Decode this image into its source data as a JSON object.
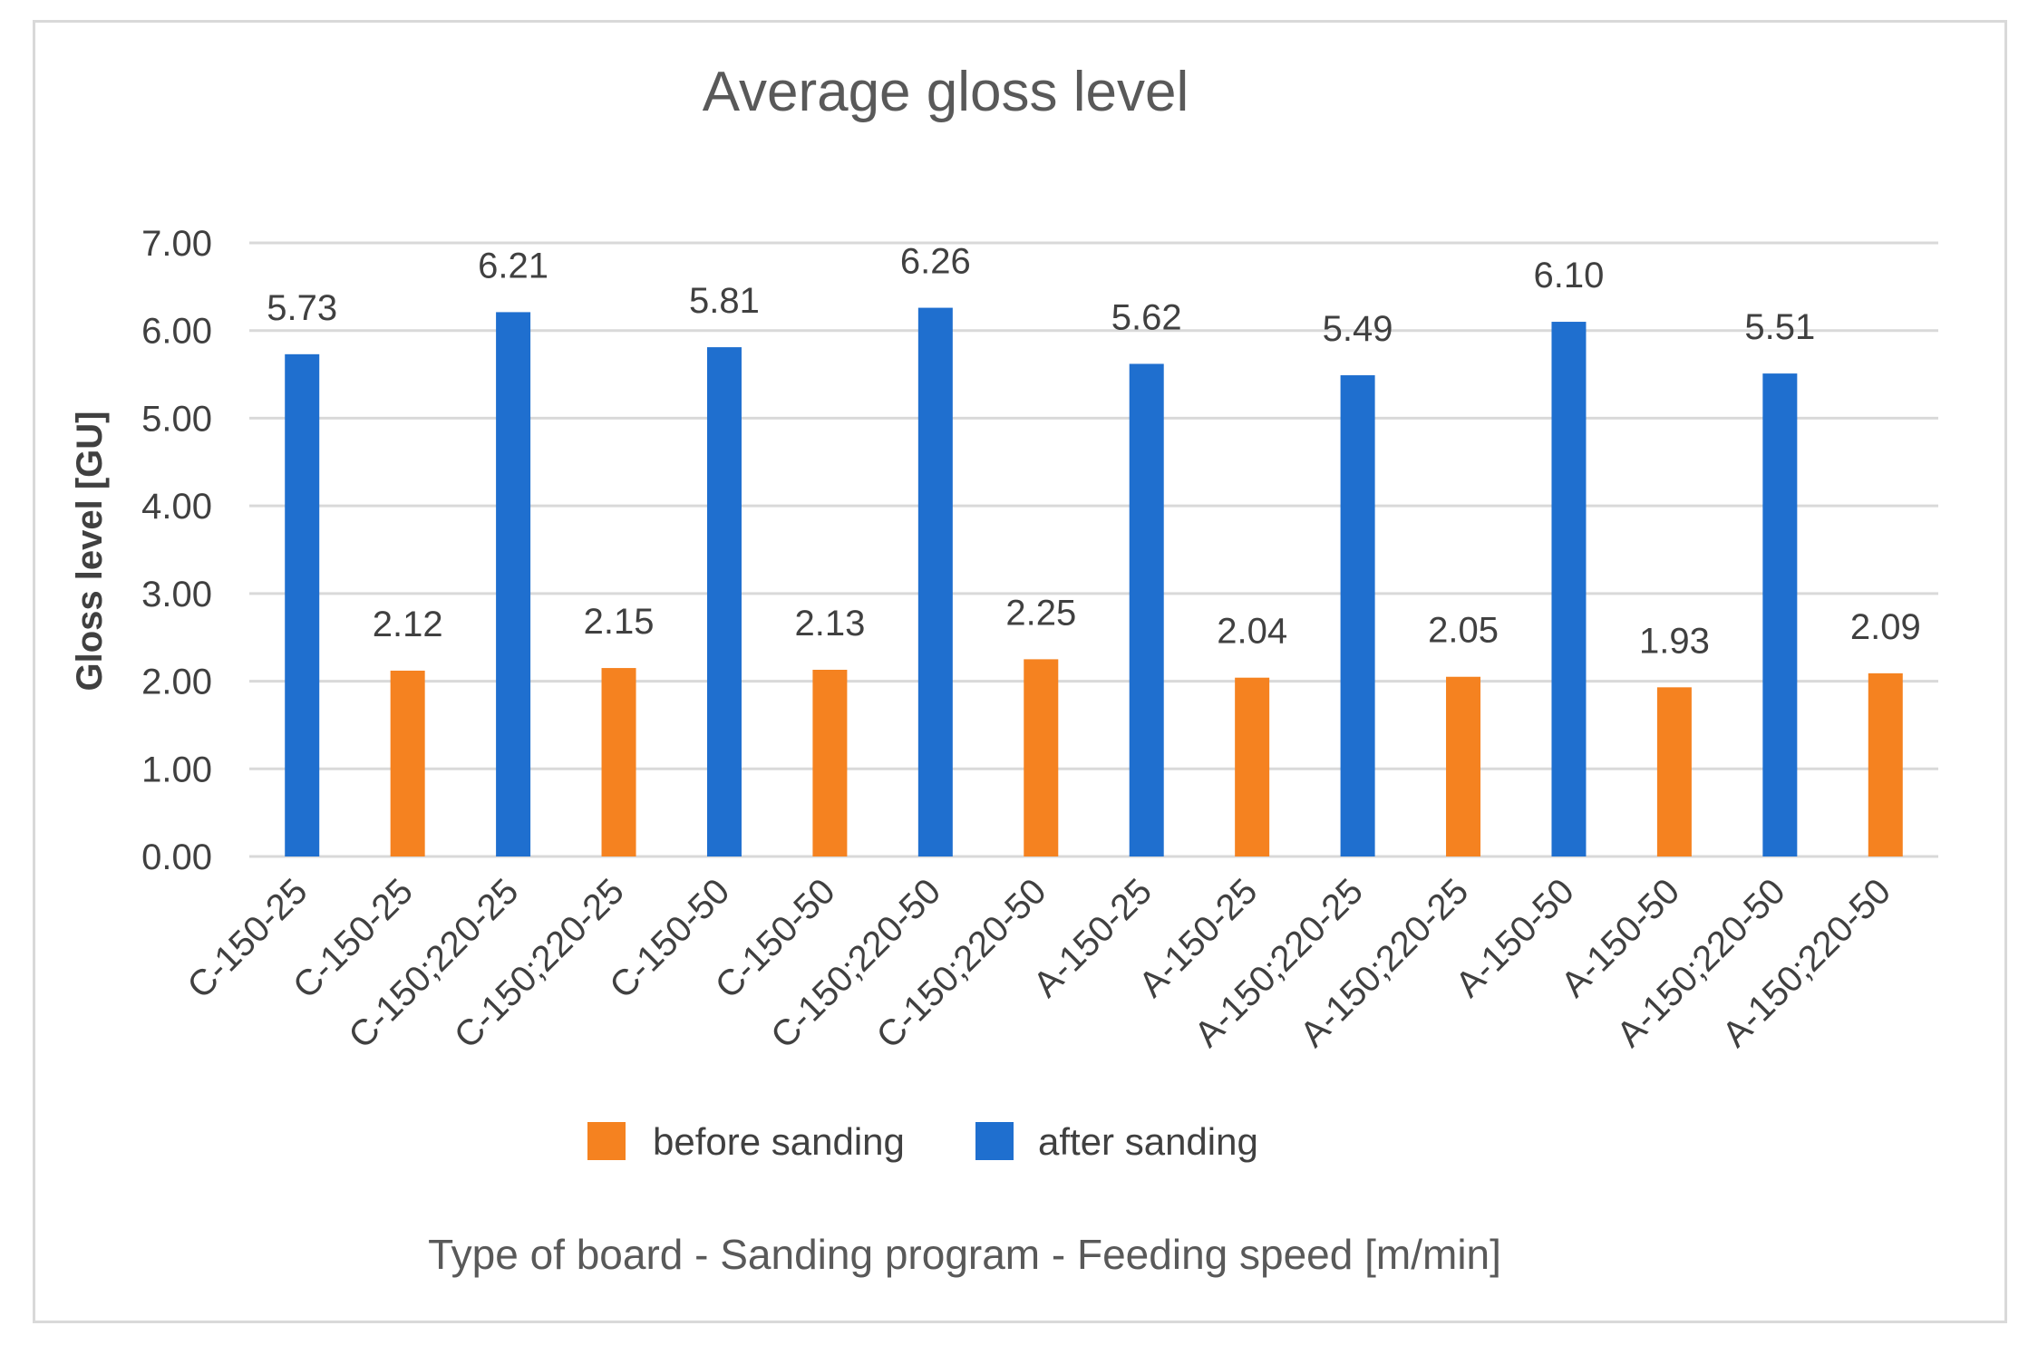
{
  "chart_data": {
    "type": "bar",
    "title": "Average gloss level",
    "xlabel": "Type of board - Sanding program - Feeding speed [m/min]",
    "ylabel": "Gloss level [GU]",
    "ylim": [
      0,
      7
    ],
    "yticks": [
      "0.00",
      "1.00",
      "2.00",
      "3.00",
      "4.00",
      "5.00",
      "6.00",
      "7.00"
    ],
    "grid": true,
    "legend_position": "bottom",
    "series": [
      {
        "name": "before sanding",
        "color": "#f58220"
      },
      {
        "name": "after sanding",
        "color": "#1f6fcf"
      }
    ],
    "categories": [
      "C-150-25",
      "C-150-25",
      "C-150;220-25",
      "C-150;220-25",
      "C-150-50",
      "C-150-50",
      "C-150;220-50",
      "C-150;220-50",
      "A-150-25",
      "A-150-25",
      "A-150;220-25",
      "A-150;220-25",
      "A-150-50",
      "A-150-50",
      "A-150;220-50",
      "A-150;220-50"
    ],
    "bars": [
      {
        "series": "after sanding",
        "value": 5.73,
        "label": "5.73"
      },
      {
        "series": "before sanding",
        "value": 2.12,
        "label": "2.12"
      },
      {
        "series": "after sanding",
        "value": 6.21,
        "label": "6.21"
      },
      {
        "series": "before sanding",
        "value": 2.15,
        "label": "2.15"
      },
      {
        "series": "after sanding",
        "value": 5.81,
        "label": "5.81"
      },
      {
        "series": "before sanding",
        "value": 2.13,
        "label": "2.13"
      },
      {
        "series": "after sanding",
        "value": 6.26,
        "label": "6.26"
      },
      {
        "series": "before sanding",
        "value": 2.25,
        "label": "2.25"
      },
      {
        "series": "after sanding",
        "value": 5.62,
        "label": "5.62"
      },
      {
        "series": "before sanding",
        "value": 2.04,
        "label": "2.04"
      },
      {
        "series": "after sanding",
        "value": 5.49,
        "label": "5.49"
      },
      {
        "series": "before sanding",
        "value": 2.05,
        "label": "2.05"
      },
      {
        "series": "after sanding",
        "value": 6.1,
        "label": "6.10"
      },
      {
        "series": "before sanding",
        "value": 1.93,
        "label": "1.93"
      },
      {
        "series": "after sanding",
        "value": 5.51,
        "label": "5.51"
      },
      {
        "series": "before sanding",
        "value": 2.09,
        "label": "2.09"
      }
    ]
  }
}
